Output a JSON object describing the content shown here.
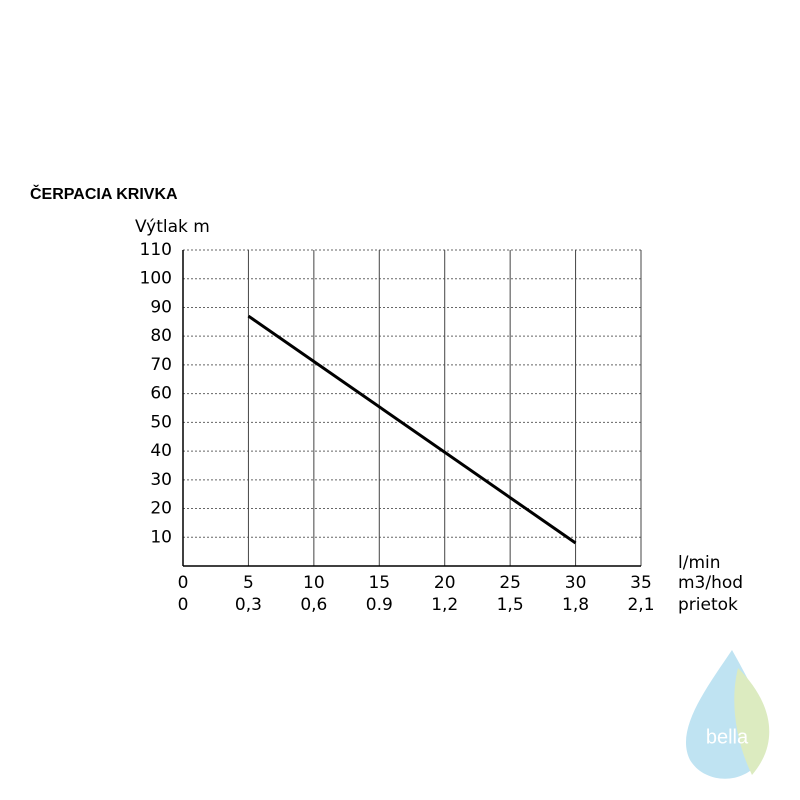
{
  "chart_data": {
    "type": "line",
    "title": "ČERPACIA KRIVKA",
    "ylabel": "Výtlak m",
    "xlabel": [
      "l/min",
      "m3/hod",
      "prietok"
    ],
    "x": [
      5,
      30
    ],
    "values": [
      87,
      8
    ],
    "color": "#000000",
    "xlim": [
      0,
      35
    ],
    "xticks": [
      0,
      5,
      10,
      15,
      20,
      25,
      30,
      35
    ],
    "x2lim": [
      0,
      2.1
    ],
    "x2ticks": [
      0,
      {
        "value": 0.3,
        "label": "0,3"
      },
      {
        "value": 0.6,
        "label": "0,6"
      },
      0.9,
      {
        "value": 1.2,
        "label": "1,2"
      },
      {
        "value": 1.5,
        "label": "1,5"
      },
      {
        "value": 1.8,
        "label": "1,8"
      },
      {
        "value": 2.1,
        "label": "2,1"
      }
    ],
    "ylim": [
      0,
      110
    ],
    "yticks": [
      10,
      20,
      30,
      40,
      50,
      60,
      70,
      80,
      90,
      100,
      110
    ],
    "grid": true
  },
  "logo": {
    "text": "bella"
  }
}
